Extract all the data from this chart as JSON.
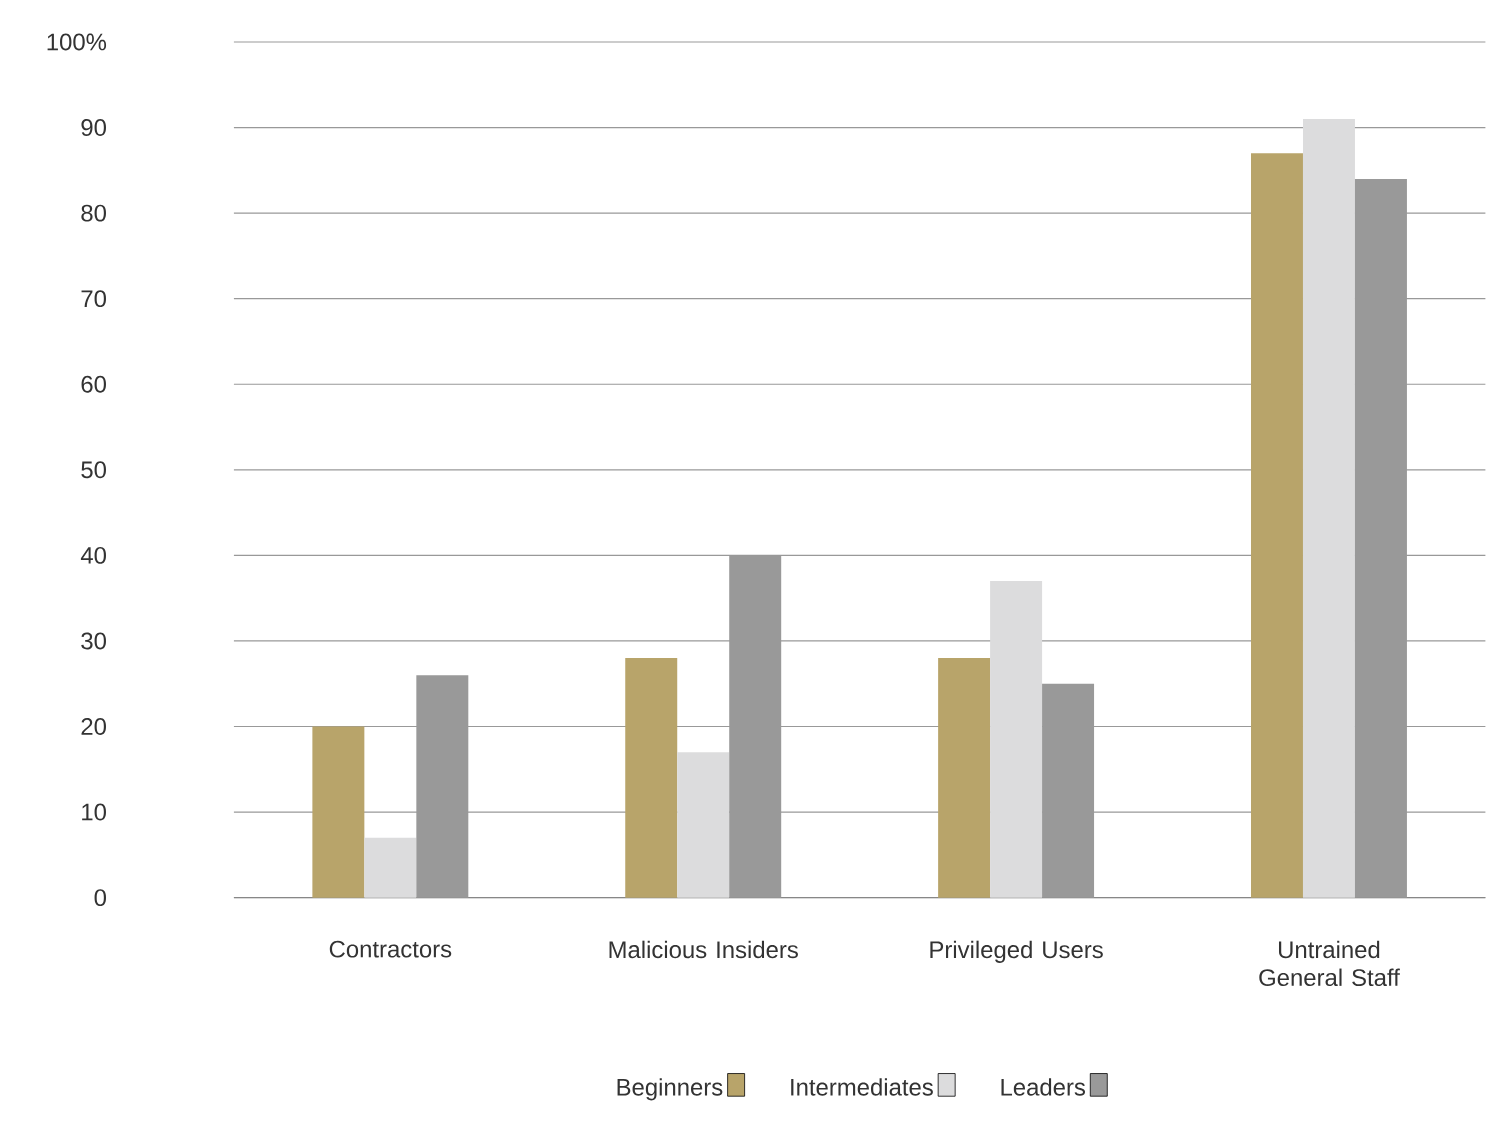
{
  "chart_data": {
    "type": "bar",
    "categories": [
      "Contractors",
      "Malicious Insiders",
      "Privileged Users",
      "Untrained General Staff"
    ],
    "series": [
      {
        "name": "Beginners",
        "color": "#b8a46a",
        "values": [
          20,
          28,
          28,
          87
        ]
      },
      {
        "name": "Intermediates",
        "color": "#dcdcdd",
        "values": [
          7,
          17,
          37,
          91
        ]
      },
      {
        "name": "Leaders",
        "color": "#999999",
        "values": [
          26,
          40,
          25,
          84
        ]
      }
    ],
    "ylim": [
      0,
      100
    ],
    "yticks": [
      0,
      10,
      20,
      30,
      40,
      50,
      60,
      70,
      80,
      90,
      {
        "value": 100,
        "label": "100%"
      }
    ],
    "grid": "y",
    "legend": "bottom"
  }
}
